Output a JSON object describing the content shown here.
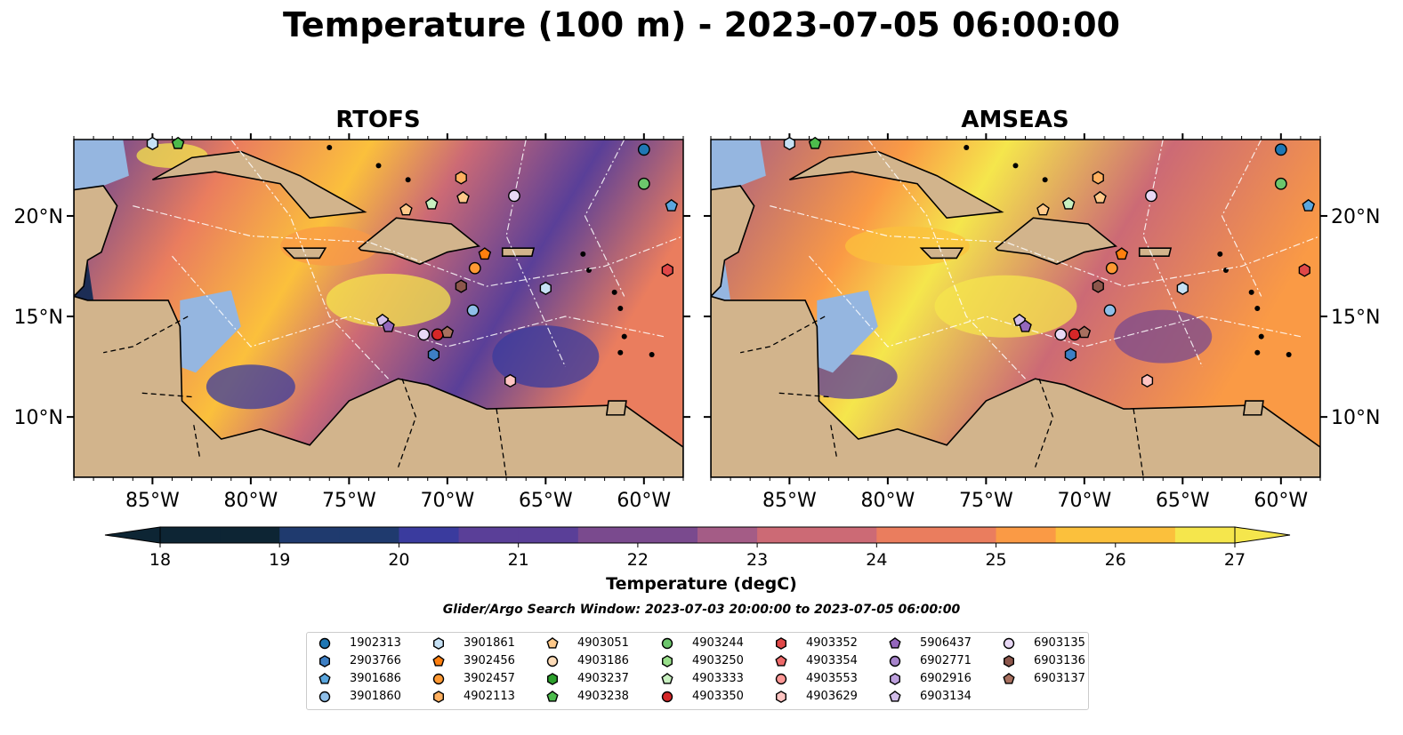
{
  "figure_title": "Temperature (100 m) - 2023-07-05 06:00:00",
  "panels": [
    {
      "title": "RTOFS"
    },
    {
      "title": "AMSEAS"
    }
  ],
  "axes": {
    "lon_ticks": [
      "85°W",
      "80°W",
      "75°W",
      "70°W",
      "65°W",
      "60°W"
    ],
    "lat_ticks": [
      "20°N",
      "15°N",
      "10°N"
    ]
  },
  "colorbar": {
    "label": "Temperature (degC)",
    "ticks": [
      "18",
      "19",
      "20",
      "21",
      "22",
      "23",
      "24",
      "25",
      "26",
      "27"
    ],
    "range": [
      18,
      27
    ],
    "colormap": [
      "#0d2534",
      "#1f3a6e",
      "#3a3b9e",
      "#5a3f98",
      "#7a4a8e",
      "#a45c86",
      "#cc6a75",
      "#ea7d5e",
      "#fa9a45",
      "#fbc03c",
      "#f5e64c"
    ]
  },
  "search_window": "Glider/Argo Search Window: 2023-07-03 20:00:00 to 2023-07-05 06:00:00",
  "legend": {
    "items": [
      {
        "label": "1902313",
        "marker": "circle",
        "color": "#1f77b4"
      },
      {
        "label": "2903766",
        "marker": "hexagon",
        "color": "#3d7fc4"
      },
      {
        "label": "3901686",
        "marker": "pentagon",
        "color": "#5aa6de"
      },
      {
        "label": "3901860",
        "marker": "circle",
        "color": "#8fbfe8"
      },
      {
        "label": "3901861",
        "marker": "hexagon",
        "color": "#c6e1f5"
      },
      {
        "label": "3902456",
        "marker": "pentagon",
        "color": "#ff7f0e"
      },
      {
        "label": "3902457",
        "marker": "circle",
        "color": "#ff9933"
      },
      {
        "label": "4902113",
        "marker": "hexagon",
        "color": "#ffb060"
      },
      {
        "label": "4903051",
        "marker": "pentagon",
        "color": "#ffc98a"
      },
      {
        "label": "4903186",
        "marker": "circle",
        "color": "#ffdcb8"
      },
      {
        "label": "4903237",
        "marker": "hexagon",
        "color": "#2ca02c"
      },
      {
        "label": "4903238",
        "marker": "pentagon",
        "color": "#4cbb4c"
      },
      {
        "label": "4903244",
        "marker": "circle",
        "color": "#6cc66c"
      },
      {
        "label": "4903250",
        "marker": "hexagon",
        "color": "#98df8a"
      },
      {
        "label": "4903333",
        "marker": "pentagon",
        "color": "#c8f0c0"
      },
      {
        "label": "4903350",
        "marker": "circle",
        "color": "#d62728"
      },
      {
        "label": "4903352",
        "marker": "hexagon",
        "color": "#e04848"
      },
      {
        "label": "4903354",
        "marker": "pentagon",
        "color": "#ee6a6a"
      },
      {
        "label": "4903553",
        "marker": "circle",
        "color": "#ff9896"
      },
      {
        "label": "4903629",
        "marker": "hexagon",
        "color": "#ffc4c2"
      },
      {
        "label": "5906437",
        "marker": "pentagon",
        "color": "#9467bd"
      },
      {
        "label": "6902771",
        "marker": "circle",
        "color": "#a784cc"
      },
      {
        "label": "6902916",
        "marker": "hexagon",
        "color": "#bda0dd"
      },
      {
        "label": "6903134",
        "marker": "pentagon",
        "color": "#d2bdea"
      },
      {
        "label": "6903135",
        "marker": "circle",
        "color": "#e8d8f5"
      },
      {
        "label": "6903136",
        "marker": "hexagon",
        "color": "#8c564b"
      },
      {
        "label": "6903137",
        "marker": "pentagon",
        "color": "#a8705f"
      }
    ]
  },
  "observations": [
    {
      "id": "1902313",
      "lon": -60.0,
      "lat": 23.3
    },
    {
      "id": "4903244",
      "lon": -60.0,
      "lat": 21.6
    },
    {
      "id": "3901686",
      "lon": -58.6,
      "lat": 20.5
    },
    {
      "id": "4902113",
      "lon": -69.3,
      "lat": 21.9
    },
    {
      "id": "4903051",
      "lon": -69.2,
      "lat": 20.9
    },
    {
      "id": "6903135",
      "lon": -66.6,
      "lat": 21.0
    },
    {
      "id": "4903333",
      "lon": -70.8,
      "lat": 20.6
    },
    {
      "id": "4903051",
      "lon": -72.1,
      "lat": 20.3
    },
    {
      "id": "3902456",
      "lon": -68.1,
      "lat": 18.1
    },
    {
      "id": "3902457",
      "lon": -68.6,
      "lat": 17.4
    },
    {
      "id": "6903136",
      "lon": -69.3,
      "lat": 16.5
    },
    {
      "id": "3901861",
      "lon": -65.0,
      "lat": 16.4
    },
    {
      "id": "3901860",
      "lon": -68.7,
      "lat": 15.3
    },
    {
      "id": "6903134",
      "lon": -73.3,
      "lat": 14.8
    },
    {
      "id": "5906437",
      "lon": -73.0,
      "lat": 14.5
    },
    {
      "id": "6903135",
      "lon": -71.2,
      "lat": 14.1
    },
    {
      "id": "4903350",
      "lon": -70.5,
      "lat": 14.1
    },
    {
      "id": "6903137",
      "lon": -70.0,
      "lat": 14.2
    },
    {
      "id": "2903766",
      "lon": -70.7,
      "lat": 13.1
    },
    {
      "id": "4903629",
      "lon": -66.8,
      "lat": 11.8
    },
    {
      "id": "4903352",
      "lon": -58.8,
      "lat": 17.3
    },
    {
      "id": "3901861",
      "lon": -85.0,
      "lat": 23.6
    },
    {
      "id": "4903238",
      "lon": -83.7,
      "lat": 23.6
    }
  ]
}
